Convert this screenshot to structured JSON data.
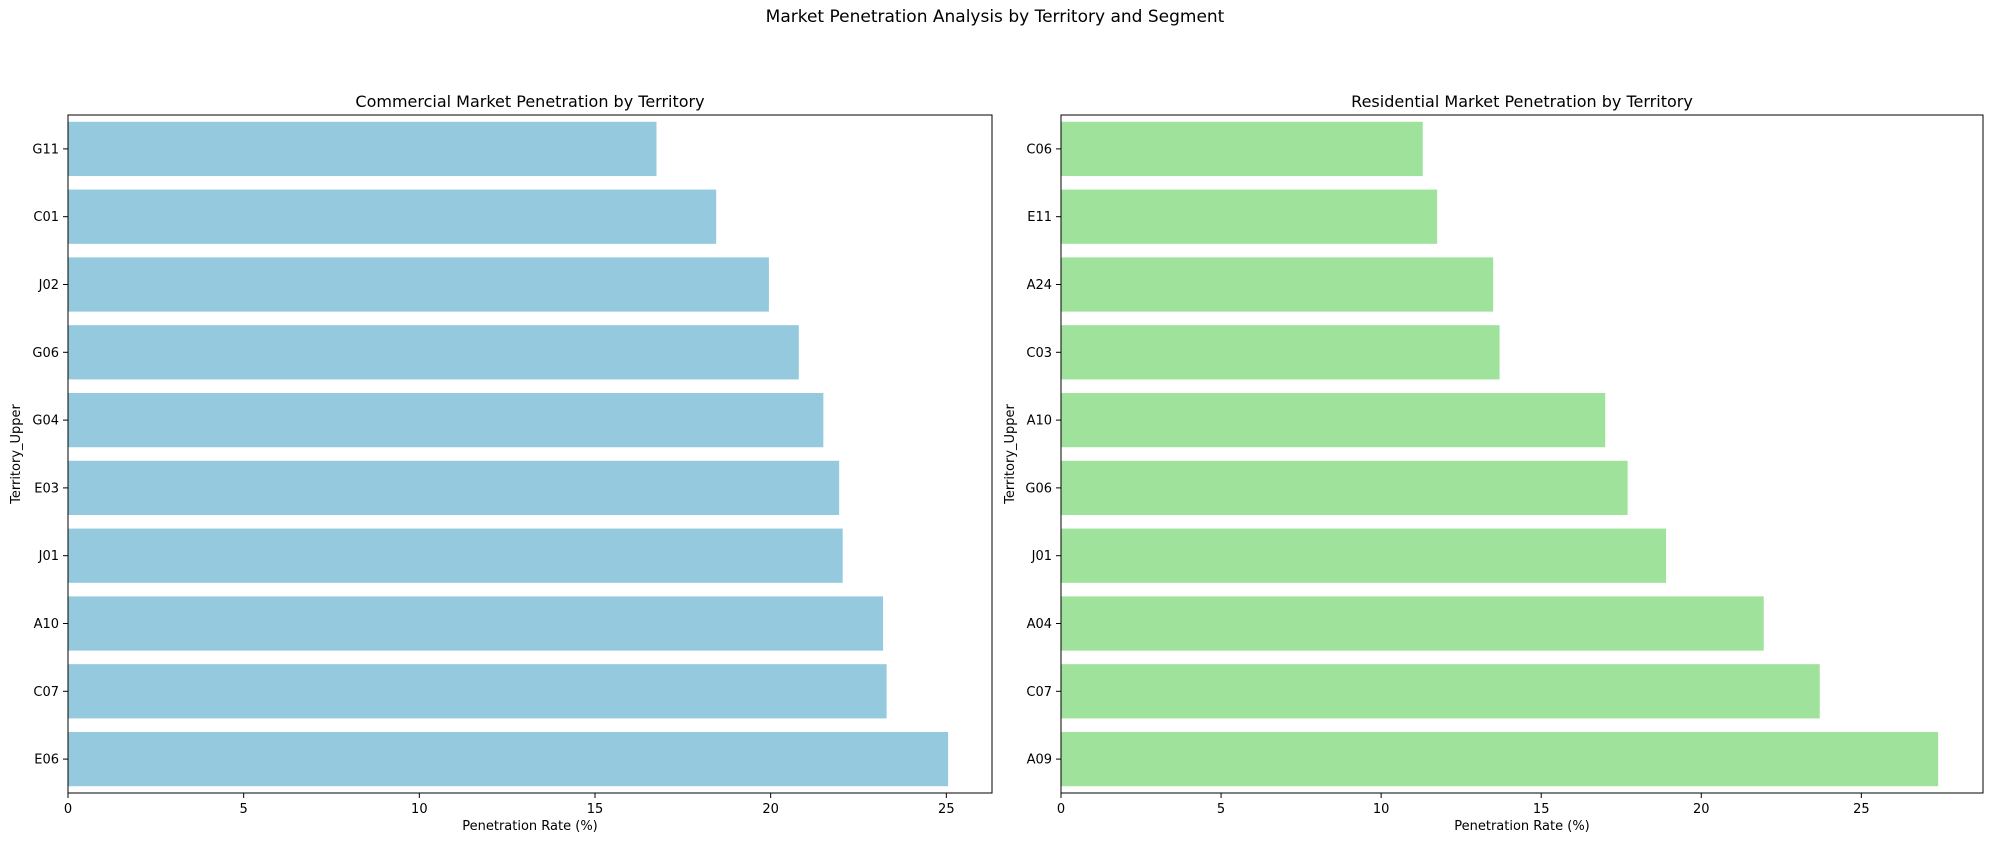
{
  "figure": {
    "suptitle": "Market Penetration Analysis by Territory and Segment"
  },
  "chart_data": [
    {
      "type": "bar",
      "orientation": "horizontal",
      "title": "Commercial Market Penetration by Territory",
      "xlabel": "Penetration Rate (%)",
      "ylabel": "Territory_Upper",
      "xlim": [
        0,
        26.3
      ],
      "xticks": [
        0,
        5,
        10,
        15,
        20,
        25
      ],
      "grid": false,
      "color": "#95c9dd",
      "categories": [
        "G11",
        "C01",
        "J02",
        "G06",
        "G04",
        "E03",
        "J01",
        "A10",
        "C07",
        "E06"
      ],
      "values": [
        16.75,
        18.45,
        19.95,
        20.8,
        21.5,
        21.95,
        22.05,
        23.2,
        23.3,
        25.05
      ]
    },
    {
      "type": "bar",
      "orientation": "horizontal",
      "title": "Residential Market Penetration by Territory",
      "xlabel": "Penetration Rate (%)",
      "ylabel": "Territory_Upper",
      "xlim": [
        0,
        28.8
      ],
      "xticks": [
        0,
        5,
        10,
        15,
        20,
        25
      ],
      "grid": false,
      "color": "#9ee29b",
      "categories": [
        "C06",
        "E11",
        "A24",
        "C03",
        "A10",
        "G06",
        "J01",
        "A04",
        "C07",
        "A09"
      ],
      "values": [
        11.3,
        11.75,
        13.5,
        13.7,
        17.0,
        17.7,
        18.9,
        21.95,
        23.7,
        27.4
      ]
    }
  ]
}
